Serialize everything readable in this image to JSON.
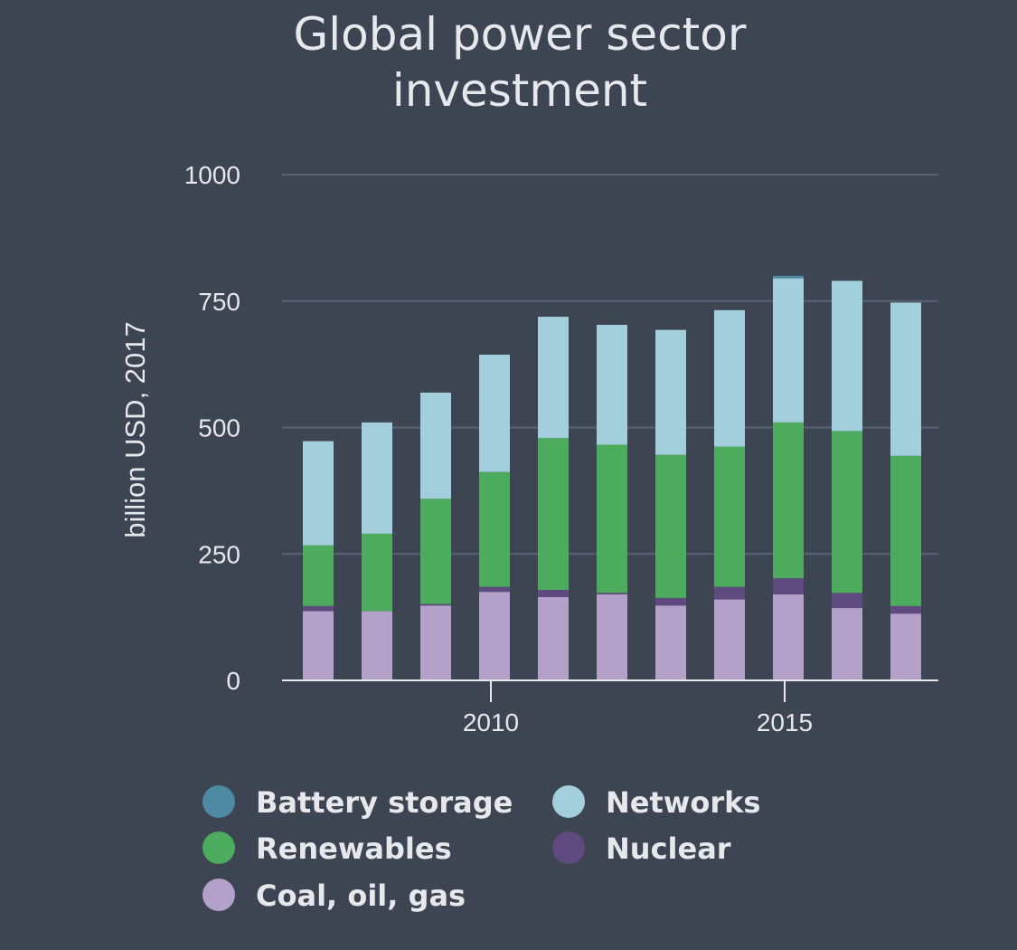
{
  "chart_data": {
    "type": "bar",
    "stacked": true,
    "title_lines": [
      "Global power sector",
      "investment"
    ],
    "xlabel": "",
    "ylabel": "billion USD, 2017",
    "ylim": [
      0,
      1000
    ],
    "yticks": [
      "0",
      "250",
      "500",
      "750",
      "1000"
    ],
    "x": [
      2007,
      2008,
      2009,
      2010,
      2011,
      2012,
      2013,
      2014,
      2015,
      2016,
      2017
    ],
    "xticks": [
      "2010",
      "2015"
    ],
    "grid": true,
    "series": [
      {
        "name": "Coal, oil, gas",
        "color": "#b3a1c9",
        "values": [
          137,
          137,
          148,
          175,
          165,
          170,
          148,
          160,
          170,
          143,
          132
        ]
      },
      {
        "name": "Nuclear",
        "color": "#5e4a7e",
        "values": [
          10,
          0,
          3,
          10,
          14,
          3,
          15,
          25,
          32,
          30,
          15
        ]
      },
      {
        "name": "Renewables",
        "color": "#4cab5d",
        "values": [
          120,
          153,
          208,
          227,
          300,
          293,
          283,
          277,
          308,
          320,
          297
        ]
      },
      {
        "name": "Networks",
        "color": "#a3cedc",
        "values": [
          206,
          220,
          210,
          232,
          240,
          237,
          247,
          270,
          285,
          297,
          303
        ]
      },
      {
        "name": "Battery storage",
        "color": "#4e8aa3",
        "values": [
          0,
          0,
          0,
          0,
          0,
          0,
          0,
          0,
          5,
          0,
          0
        ]
      }
    ],
    "legend": [
      {
        "name": "Battery storage",
        "color": "#4e8aa3"
      },
      {
        "name": "Networks",
        "color": "#a3cedc"
      },
      {
        "name": "Renewables",
        "color": "#4cab5d"
      },
      {
        "name": "Nuclear",
        "color": "#5e4a7e"
      },
      {
        "name": "Coal, oil, gas",
        "color": "#b3a1c9"
      }
    ]
  }
}
